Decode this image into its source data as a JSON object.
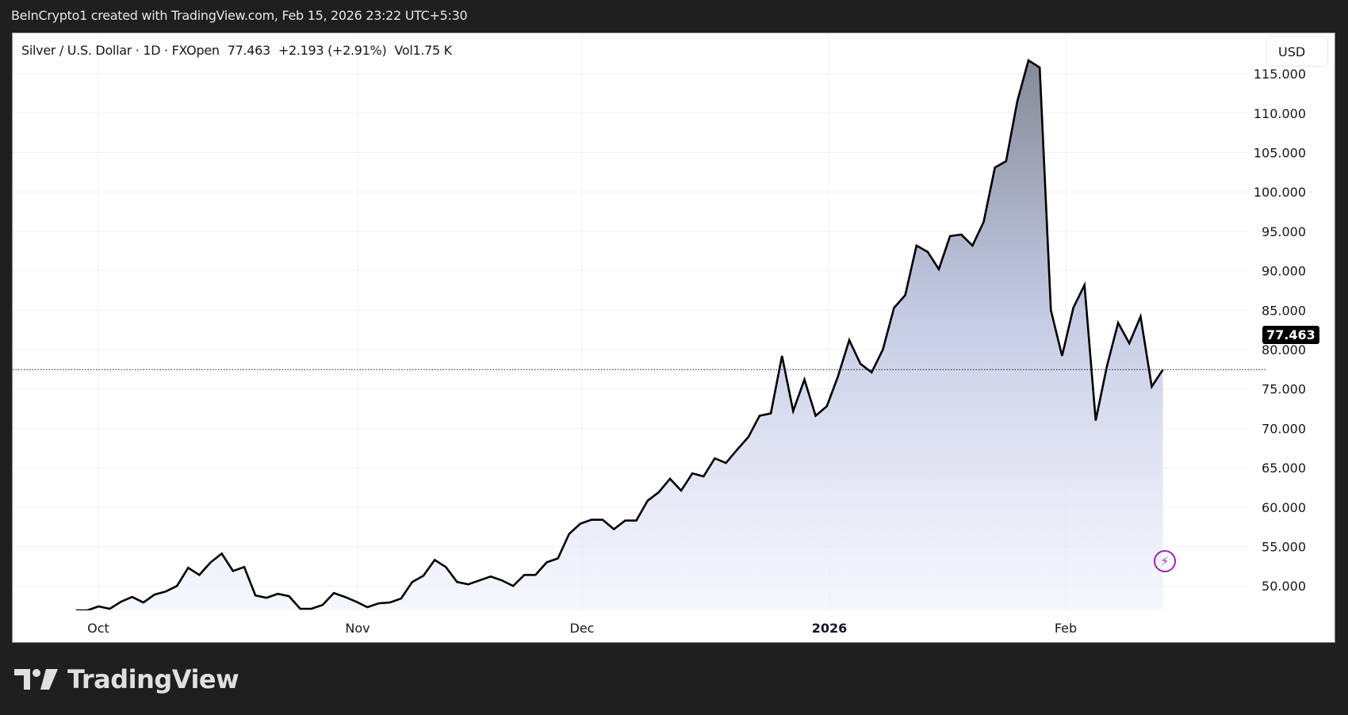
{
  "header": {
    "attribution": "BeInCrypto1 created with TradingView.com, Feb 15, 2026 23:22 UTC+5:30"
  },
  "legend": {
    "symbol": "Silver / U.S. Dollar · 1D · FXOpen",
    "last": "77.463",
    "change": "+2.193 (+2.91%)",
    "volume": "Vol1.75 K"
  },
  "currency_button": "USD",
  "current_price_label": "77.463",
  "brand": "TradingView",
  "colors": {
    "line": "#000000",
    "fill_top": "#858a97",
    "fill_bottom": "#eef2fd",
    "price_tag_bg": "#000000",
    "bolt": "#9c27b0"
  },
  "chart_data": {
    "type": "area",
    "title": "Silver / U.S. Dollar · 1D · FXOpen",
    "xlabel": "",
    "ylabel": "USD",
    "ylim": [
      46.5,
      118
    ],
    "grid": true,
    "y_ticks": [
      "50.000",
      "55.000",
      "60.000",
      "65.000",
      "70.000",
      "75.000",
      "80.000",
      "85.000",
      "90.000",
      "95.000",
      "100.000",
      "105.000",
      "110.000",
      "115.000"
    ],
    "x_ticks": [
      {
        "label": "Oct",
        "index": 2
      },
      {
        "label": "Nov",
        "index": 25
      },
      {
        "label": "Dec",
        "index": 45
      },
      {
        "label": "2026",
        "index": 67
      },
      {
        "label": "Feb",
        "index": 88
      }
    ],
    "last_value": 77.463,
    "values": [
      46.9,
      46.9,
      47.4,
      47.1,
      48.0,
      48.6,
      47.9,
      48.9,
      49.3,
      50.0,
      52.3,
      51.4,
      53.0,
      54.1,
      51.9,
      52.4,
      48.8,
      48.5,
      49.0,
      48.7,
      47.1,
      47.1,
      47.6,
      49.1,
      48.6,
      48.0,
      47.3,
      47.8,
      47.9,
      48.4,
      50.5,
      51.3,
      53.3,
      52.4,
      50.5,
      50.2,
      50.7,
      51.2,
      50.7,
      50.0,
      51.4,
      51.4,
      53.0,
      53.5,
      56.6,
      57.9,
      58.4,
      58.4,
      57.2,
      58.3,
      58.3,
      60.8,
      61.9,
      63.6,
      62.1,
      64.3,
      63.9,
      66.2,
      65.6,
      67.3,
      68.9,
      71.6,
      71.9,
      79.2,
      72.2,
      76.2,
      71.6,
      72.8,
      76.6,
      81.2,
      78.2,
      77.1,
      80.0,
      85.3,
      86.9,
      93.2,
      92.4,
      90.2,
      94.4,
      94.6,
      93.2,
      96.2,
      103.1,
      103.9,
      111.5,
      116.7,
      115.8,
      85.0,
      79.2,
      85.3,
      88.2,
      71.0,
      77.9,
      83.4,
      80.8,
      84.2,
      75.3,
      77.463
    ]
  }
}
